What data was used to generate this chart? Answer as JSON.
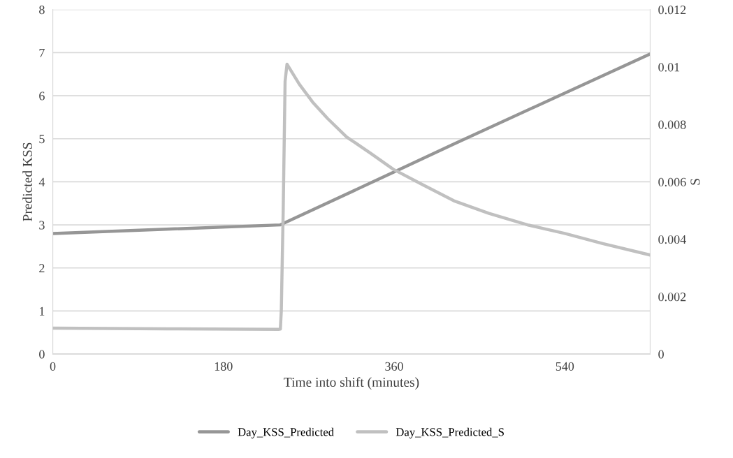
{
  "chart_data": {
    "type": "line",
    "xlabel": "Time into shift (minutes)",
    "ylabel": "Predicted KSS",
    "y2label": "S",
    "xlim": [
      0,
      630
    ],
    "xticks": [
      0,
      180,
      360,
      540
    ],
    "ylim": [
      0,
      8
    ],
    "yticks": [
      0,
      1,
      2,
      3,
      4,
      5,
      6,
      7,
      8
    ],
    "y2lim": [
      0,
      0.012
    ],
    "y2ticks": [
      0,
      0.002,
      0.004,
      0.006,
      0.008,
      0.01,
      0.012
    ],
    "grid": "y",
    "legend": "bottom",
    "marker": "none",
    "line_style": "solid",
    "series": [
      {
        "name": "Day_KSS_Predicted",
        "color": "#969696",
        "x": [
          0,
          120,
          240,
          360,
          423,
          630
        ],
        "values": [
          2.8,
          2.9,
          3.0,
          4.23,
          4.88,
          6.97
        ]
      },
      {
        "name": "Day_KSS_Predicted_S",
        "color": "#c0c0c0",
        "axis": "y2",
        "x": [
          0,
          120,
          238,
          240,
          241,
          243,
          245,
          247,
          260,
          274,
          290,
          310,
          335,
          359,
          390,
          423,
          460,
          502,
          540,
          580,
          630
        ],
        "values": [
          0.0009,
          0.00088,
          0.00086,
          0.00087,
          0.0015,
          0.005,
          0.0095,
          0.0101,
          0.0094,
          0.00878,
          0.0082,
          0.00756,
          0.007,
          0.00644,
          0.0059,
          0.00534,
          0.0049,
          0.00449,
          0.0042,
          0.00385,
          0.00345
        ]
      }
    ]
  }
}
